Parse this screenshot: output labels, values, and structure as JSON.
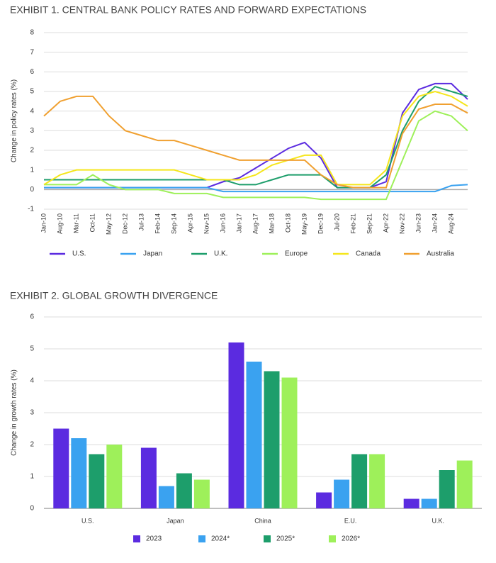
{
  "chart_data": [
    {
      "type": "line",
      "title": "EXHIBIT 1. CENTRAL BANK POLICY RATES AND FORWARD EXPECTATIONS",
      "y_label": "Change in policy rates (%)",
      "categories": [
        "Jan-10",
        "Aug-10",
        "Mar-11",
        "Oct-11",
        "May-12",
        "Dec-12",
        "Jul-13",
        "Feb-14",
        "Sep-14",
        "Apr-15",
        "Nov-15",
        "Jun-16",
        "Jan-17",
        "Aug-17",
        "Mar-18",
        "Oct-18",
        "May-19",
        "Dec-19",
        "Jul-20",
        "Feb-21",
        "Sep-21",
        "Apr-22",
        "Nov-22",
        "Jun-23",
        "Jan-24",
        "Aug-24",
        null
      ],
      "ylim": [
        -1,
        8
      ],
      "yticks": [
        -1,
        0,
        1,
        2,
        3,
        4,
        5,
        6,
        7,
        8
      ],
      "grid": true,
      "series": [
        {
          "name": "U.S.",
          "color": "#5b2be0",
          "values": [
            0.1,
            0.1,
            0.1,
            0.1,
            0.1,
            0.1,
            0.1,
            0.1,
            0.1,
            0.1,
            0.1,
            0.4,
            0.6,
            1.1,
            1.6,
            2.1,
            2.4,
            1.6,
            0.1,
            0.1,
            0.1,
            0.4,
            3.9,
            5.1,
            5.4,
            5.4,
            4.6
          ]
        },
        {
          "name": "Japan",
          "color": "#3aa2f0",
          "values": [
            0.1,
            0.1,
            0.1,
            0.1,
            0.1,
            0.1,
            0.1,
            0.1,
            0.1,
            0.1,
            0.1,
            -0.1,
            -0.1,
            -0.1,
            -0.1,
            -0.1,
            -0.1,
            -0.1,
            -0.1,
            -0.1,
            -0.1,
            -0.1,
            -0.1,
            -0.1,
            -0.1,
            0.2,
            0.25
          ]
        },
        {
          "name": "U.K.",
          "color": "#1d9e6b",
          "values": [
            0.5,
            0.5,
            0.5,
            0.5,
            0.5,
            0.5,
            0.5,
            0.5,
            0.5,
            0.5,
            0.5,
            0.5,
            0.25,
            0.25,
            0.5,
            0.75,
            0.75,
            0.75,
            0.1,
            0.1,
            0.1,
            0.75,
            3.0,
            4.5,
            5.25,
            5.0,
            4.75
          ]
        },
        {
          "name": "Europe",
          "color": "#9ef05a",
          "values": [
            0.25,
            0.25,
            0.25,
            0.75,
            0.25,
            0,
            0,
            0,
            -0.2,
            -0.2,
            -0.2,
            -0.4,
            -0.4,
            -0.4,
            -0.4,
            -0.4,
            -0.4,
            -0.5,
            -0.5,
            -0.5,
            -0.5,
            -0.5,
            1.5,
            3.5,
            4.0,
            3.75,
            3.0
          ]
        },
        {
          "name": "Canada",
          "color": "#f5e61c",
          "values": [
            0.25,
            0.75,
            1.0,
            1.0,
            1.0,
            1.0,
            1.0,
            1.0,
            1.0,
            0.75,
            0.5,
            0.5,
            0.5,
            0.75,
            1.25,
            1.5,
            1.75,
            1.75,
            0.25,
            0.25,
            0.25,
            1.0,
            3.75,
            4.75,
            5.0,
            4.75,
            4.25
          ]
        },
        {
          "name": "Australia",
          "color": "#f0a030",
          "values": [
            3.75,
            4.5,
            4.75,
            4.75,
            3.75,
            3.0,
            2.75,
            2.5,
            2.5,
            2.25,
            2.0,
            1.75,
            1.5,
            1.5,
            1.5,
            1.5,
            1.5,
            0.75,
            0.25,
            0.1,
            0.1,
            0.1,
            2.85,
            4.1,
            4.35,
            4.35,
            3.9
          ]
        }
      ]
    },
    {
      "type": "bar",
      "title": "EXHIBIT 2. GLOBAL GROWTH DIVERGENCE",
      "y_label": "Change in growth rates (%)",
      "categories": [
        "U.S.",
        "Japan",
        "China",
        "E.U.",
        "U.K."
      ],
      "ylim": [
        0,
        6
      ],
      "yticks": [
        0,
        1,
        2,
        3,
        4,
        5,
        6
      ],
      "grid": true,
      "series": [
        {
          "name": "2023",
          "color": "#5b2be0",
          "values": [
            2.5,
            1.9,
            5.2,
            0.5,
            0.3
          ]
        },
        {
          "name": "2024*",
          "color": "#3aa2f0",
          "values": [
            2.2,
            0.7,
            4.6,
            0.9,
            0.3
          ]
        },
        {
          "name": "2025*",
          "color": "#1d9e6b",
          "values": [
            1.7,
            1.1,
            4.3,
            1.7,
            1.2
          ]
        },
        {
          "name": "2026*",
          "color": "#9ef05a",
          "values": [
            2.0,
            0.9,
            4.1,
            1.7,
            1.5
          ]
        }
      ]
    }
  ]
}
